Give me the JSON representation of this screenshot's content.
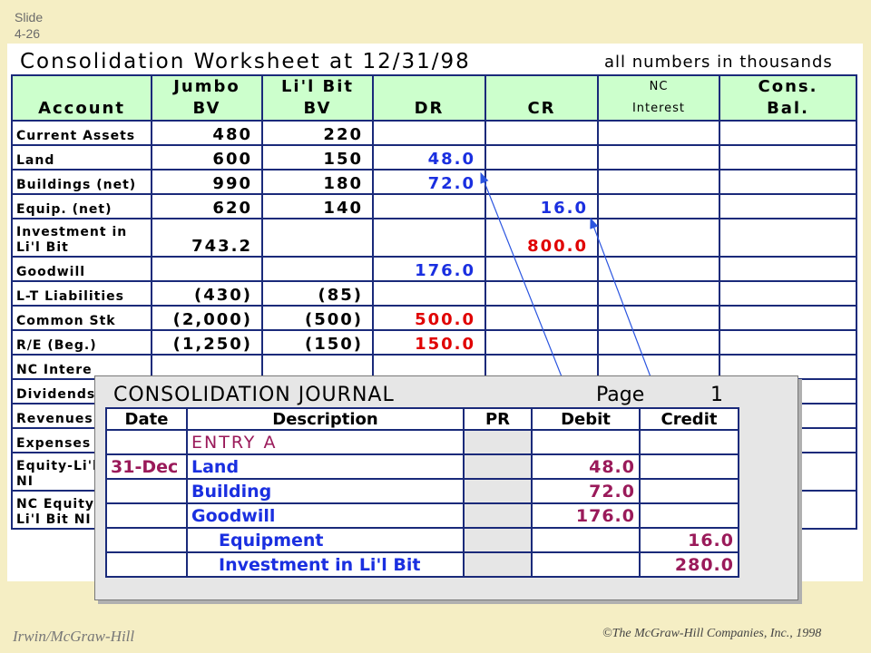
{
  "slide": {
    "label": "Slide",
    "number": "4-26"
  },
  "worksheet": {
    "title": "Consolidation Worksheet at 12/31/98",
    "note": "all numbers in thousands",
    "headers": {
      "account": "Account",
      "jumbo_1": "Jumbo",
      "jumbo_2": "BV",
      "libit_1": "Li'l Bit",
      "libit_2": "BV",
      "dr": "DR",
      "cr": "CR",
      "nc_1": "NC",
      "nc_2": "Interest",
      "cons_1": "Cons.",
      "cons_2": "Bal."
    },
    "rows": [
      {
        "account": "Current Assets",
        "jumbo": "480",
        "libit": "220",
        "dr": "",
        "cr": ""
      },
      {
        "account": "Land",
        "jumbo": "600",
        "libit": "150",
        "dr": "48.0",
        "cr": ""
      },
      {
        "account": "Buildings (net)",
        "jumbo": "990",
        "libit": "180",
        "dr": "72.0",
        "cr": ""
      },
      {
        "account": "Equip. (net)",
        "jumbo": "620",
        "libit": "140",
        "dr": "",
        "cr": "16.0"
      },
      {
        "account": "Investment in",
        "account2": "Li'l Bit",
        "jumbo": "743.2",
        "libit": "",
        "dr": "",
        "cr": "800.0"
      },
      {
        "account": "Goodwill",
        "jumbo": "",
        "libit": "",
        "dr": "176.0",
        "cr": ""
      },
      {
        "account": "L-T Liabilities",
        "jumbo": "(430)",
        "libit": "(85)",
        "dr": "",
        "cr": ""
      },
      {
        "account": "Common Stk",
        "jumbo": "(2,000)",
        "libit": "(500)",
        "dr": "500.0",
        "cr": ""
      },
      {
        "account": "R/E (Beg.)",
        "jumbo": "(1,250)",
        "libit": "(150)",
        "dr": "150.0",
        "cr": ""
      },
      {
        "account": "NC Intere",
        "jumbo": "",
        "libit": "",
        "dr": "",
        "cr": ""
      },
      {
        "account": "Dividends",
        "jumbo": "",
        "libit": "",
        "dr": "",
        "cr": ""
      },
      {
        "account": "Revenues",
        "jumbo": "",
        "libit": "",
        "dr": "",
        "cr": ""
      },
      {
        "account": "Expenses",
        "jumbo": "",
        "libit": "",
        "dr": "",
        "cr": ""
      },
      {
        "account": "Equity-Li'l",
        "account2": "NI",
        "jumbo": "",
        "libit": "",
        "dr": "",
        "cr": ""
      },
      {
        "account": "NC Equity",
        "account2": "Li'l Bit NI",
        "jumbo": "",
        "libit": "",
        "dr": "",
        "cr": ""
      }
    ]
  },
  "journal": {
    "title": "CONSOLIDATION JOURNAL",
    "page_label": "Page",
    "page_number": "1",
    "headers": {
      "date": "Date",
      "description": "Description",
      "pr": "PR",
      "debit": "Debit",
      "credit": "Credit"
    },
    "rows": [
      {
        "date": "",
        "description": "ENTRY A",
        "pr": "",
        "debit": "",
        "credit": ""
      },
      {
        "date": "31-Dec",
        "description": "Land",
        "pr": "",
        "debit": "48.0",
        "credit": ""
      },
      {
        "date": "",
        "description": "Building",
        "pr": "",
        "debit": "72.0",
        "credit": ""
      },
      {
        "date": "",
        "description": "Goodwill",
        "pr": "",
        "debit": "176.0",
        "credit": ""
      },
      {
        "date": "",
        "description": "Equipment",
        "pr": "",
        "debit": "",
        "credit": "16.0"
      },
      {
        "date": "",
        "description": "Investment in Li'l Bit",
        "pr": "",
        "debit": "",
        "credit": "280.0"
      }
    ]
  },
  "footer": {
    "publisher": "Irwin/McGraw-Hill",
    "copyright": "©The McGraw-Hill Companies, Inc., 1998"
  },
  "colors": {
    "header_bg": "#ccffcc",
    "blue_value": "#1a2fe0",
    "red_value": "#e00000",
    "journal_text": "#9a1a5a"
  }
}
